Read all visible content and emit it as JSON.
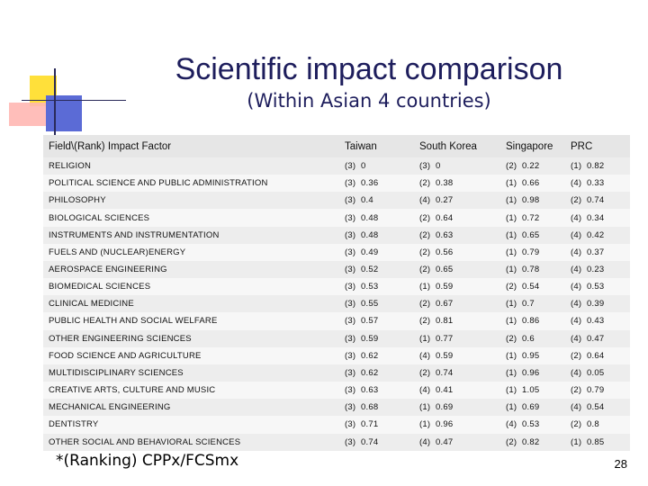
{
  "title": "Scientific impact comparison",
  "subtitle": "(Within Asian 4 countries)",
  "table": {
    "headers": [
      "Field\\(Rank) Impact Factor",
      "Taiwan",
      "South Korea",
      "Singapore",
      "PRC"
    ],
    "rows": [
      [
        "RELIGION",
        "(3) 0",
        "(3) 0",
        "(2) 0.22",
        "(1) 0.82"
      ],
      [
        "POLITICAL SCIENCE AND PUBLIC ADMINISTRATION",
        "(3) 0.36",
        "(2) 0.38",
        "(1) 0.66",
        "(4) 0.33"
      ],
      [
        "PHILOSOPHY",
        "(3) 0.4",
        "(4) 0.27",
        "(1) 0.98",
        "(2) 0.74"
      ],
      [
        "BIOLOGICAL SCIENCES",
        "(3) 0.48",
        "(2) 0.64",
        "(1) 0.72",
        "(4) 0.34"
      ],
      [
        "INSTRUMENTS AND INSTRUMENTATION",
        "(3) 0.48",
        "(2) 0.63",
        "(1) 0.65",
        "(4) 0.42"
      ],
      [
        "FUELS AND (NUCLEAR)ENERGY",
        "(3) 0.49",
        "(2) 0.56",
        "(1) 0.79",
        "(4) 0.37"
      ],
      [
        "AEROSPACE ENGINEERING",
        "(3) 0.52",
        "(2) 0.65",
        "(1) 0.78",
        "(4) 0.23"
      ],
      [
        "BIOMEDICAL SCIENCES",
        "(3) 0.53",
        "(1) 0.59",
        "(2) 0.54",
        "(4) 0.53"
      ],
      [
        "CLINICAL MEDICINE",
        "(3) 0.55",
        "(2) 0.67",
        "(1) 0.7",
        "(4) 0.39"
      ],
      [
        "PUBLIC HEALTH AND SOCIAL WELFARE",
        "(3) 0.57",
        "(2) 0.81",
        "(1) 0.86",
        "(4) 0.43"
      ],
      [
        "OTHER ENGINEERING SCIENCES",
        "(3) 0.59",
        "(1) 0.77",
        "(2) 0.6",
        "(4) 0.47"
      ],
      [
        "FOOD SCIENCE AND AGRICULTURE",
        "(3) 0.62",
        "(4) 0.59",
        "(1) 0.95",
        "(2) 0.64"
      ],
      [
        "MULTIDISCIPLINARY SCIENCES",
        "(3) 0.62",
        "(2) 0.74",
        "(1) 0.96",
        "(4) 0.05"
      ],
      [
        "CREATIVE ARTS, CULTURE AND MUSIC",
        "(3) 0.63",
        "(4) 0.41",
        "(1) 1.05",
        "(2) 0.79"
      ],
      [
        "MECHANICAL ENGINEERING",
        "(3) 0.68",
        "(1) 0.69",
        "(1) 0.69",
        "(4) 0.54"
      ],
      [
        "DENTISTRY",
        "(3) 0.71",
        "(1) 0.96",
        "(4) 0.53",
        "(2) 0.8"
      ],
      [
        "OTHER SOCIAL AND BEHAVIORAL SCIENCES",
        "(3) 0.74",
        "(4) 0.47",
        "(2) 0.82",
        "(1) 0.85"
      ]
    ]
  },
  "footnote": "*(Ranking) CPPx/FCSmx",
  "page_number": "28",
  "colors": {
    "title": "#1d1d5c",
    "header_row": "#e6e6e6",
    "row_odd": "#ededed",
    "row_even": "#f7f7f7",
    "deco_yellow": "#ffe03a",
    "deco_red": "#ffb7b2",
    "deco_blue": "#5b6bd6"
  }
}
